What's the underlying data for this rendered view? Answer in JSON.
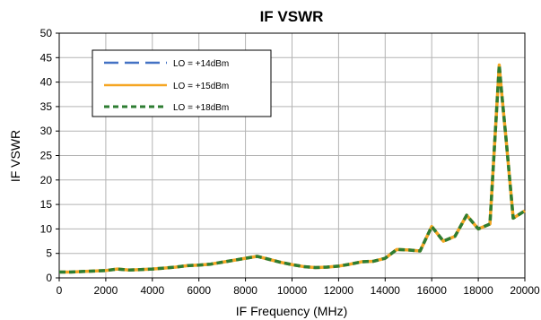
{
  "chart_data": {
    "type": "line",
    "title": "IF VSWR",
    "xlabel": "IF Frequency (MHz)",
    "ylabel": "IF VSWR",
    "xlim": [
      0,
      20000
    ],
    "ylim": [
      0,
      50
    ],
    "xticks": [
      "0",
      "2000",
      "4000",
      "6000",
      "8000",
      "10000",
      "12000",
      "14000",
      "16000",
      "18000",
      "20000"
    ],
    "yticks": [
      "0",
      "5",
      "10",
      "15",
      "20",
      "25",
      "30",
      "35",
      "40",
      "45",
      "50"
    ],
    "grid": true,
    "legend_position": "top-left",
    "series": [
      {
        "name": "LO = +14dBm",
        "color": "#4472c4",
        "dash": "long-dash",
        "x": [
          0,
          500,
          1000,
          1500,
          2000,
          2500,
          3000,
          3500,
          4000,
          4500,
          5000,
          5500,
          6000,
          6500,
          7000,
          7500,
          8000,
          8500,
          9000,
          9500,
          10000,
          10500,
          11000,
          11500,
          12000,
          12500,
          13000,
          13500,
          14000,
          14500,
          15000,
          15500,
          16000,
          16500,
          17000,
          17500,
          18000,
          18500,
          18900,
          19000,
          19200,
          19500,
          20000
        ],
        "y": [
          1.2,
          1.2,
          1.3,
          1.4,
          1.5,
          1.8,
          1.6,
          1.7,
          1.8,
          2.0,
          2.2,
          2.5,
          2.6,
          2.8,
          3.2,
          3.6,
          4.0,
          4.4,
          3.8,
          3.2,
          2.7,
          2.3,
          2.1,
          2.2,
          2.4,
          2.8,
          3.3,
          3.4,
          4.0,
          5.8,
          5.7,
          5.5,
          10.5,
          7.5,
          8.5,
          12.8,
          10.0,
          11.0,
          43.5,
          38.0,
          28.0,
          12.2,
          13.7
        ]
      },
      {
        "name": "LO = +15dBm",
        "color": "#f5a623",
        "dash": "solid",
        "x": [
          0,
          500,
          1000,
          1500,
          2000,
          2500,
          3000,
          3500,
          4000,
          4500,
          5000,
          5500,
          6000,
          6500,
          7000,
          7500,
          8000,
          8500,
          9000,
          9500,
          10000,
          10500,
          11000,
          11500,
          12000,
          12500,
          13000,
          13500,
          14000,
          14500,
          15000,
          15500,
          16000,
          16500,
          17000,
          17500,
          18000,
          18500,
          18900,
          19000,
          19200,
          19500,
          20000
        ],
        "y": [
          1.2,
          1.2,
          1.3,
          1.4,
          1.5,
          1.8,
          1.6,
          1.7,
          1.8,
          2.0,
          2.2,
          2.5,
          2.6,
          2.8,
          3.2,
          3.6,
          4.0,
          4.4,
          3.8,
          3.2,
          2.7,
          2.3,
          2.1,
          2.2,
          2.4,
          2.8,
          3.3,
          3.4,
          4.0,
          5.8,
          5.7,
          5.5,
          10.5,
          7.5,
          8.5,
          12.8,
          10.0,
          11.0,
          43.5,
          38.0,
          28.0,
          12.2,
          13.7
        ]
      },
      {
        "name": "LO = +18dBm",
        "color": "#2e7d32",
        "dash": "short-dash",
        "x": [
          0,
          500,
          1000,
          1500,
          2000,
          2500,
          3000,
          3500,
          4000,
          4500,
          5000,
          5500,
          6000,
          6500,
          7000,
          7500,
          8000,
          8500,
          9000,
          9500,
          10000,
          10500,
          11000,
          11500,
          12000,
          12500,
          13000,
          13500,
          14000,
          14500,
          15000,
          15500,
          16000,
          16500,
          17000,
          17500,
          18000,
          18500,
          18900,
          19000,
          19200,
          19500,
          20000
        ],
        "y": [
          1.2,
          1.2,
          1.3,
          1.4,
          1.5,
          1.8,
          1.6,
          1.7,
          1.8,
          2.0,
          2.2,
          2.5,
          2.6,
          2.8,
          3.2,
          3.6,
          4.0,
          4.4,
          3.8,
          3.2,
          2.7,
          2.3,
          2.1,
          2.2,
          2.4,
          2.8,
          3.3,
          3.4,
          4.0,
          5.8,
          5.7,
          5.5,
          10.5,
          7.5,
          8.5,
          12.8,
          10.0,
          11.0,
          43.5,
          38.0,
          28.0,
          12.2,
          13.7
        ]
      }
    ]
  }
}
